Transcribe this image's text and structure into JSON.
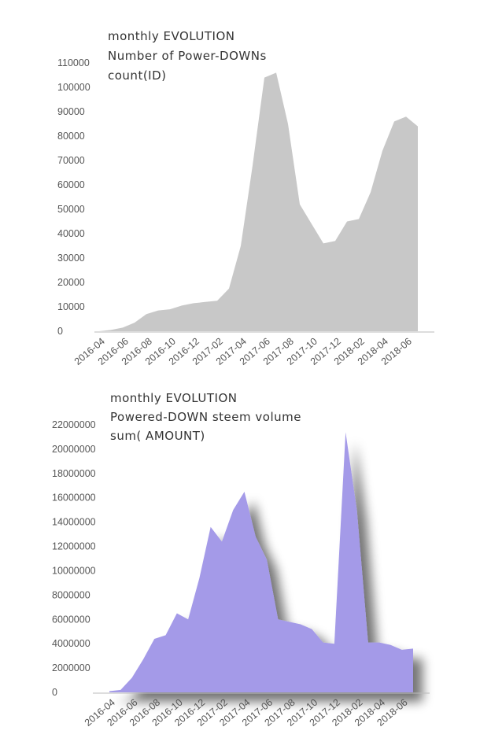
{
  "chart_data": [
    {
      "type": "area",
      "title": "monthly EVOLUTION",
      "subtitle": "Number of Power-DOWNs",
      "ylabel": "count(ID)",
      "color": "#c8c8c8",
      "ylim": [
        0,
        110000
      ],
      "yticks": [
        0,
        10000,
        20000,
        30000,
        40000,
        50000,
        60000,
        70000,
        80000,
        90000,
        100000,
        110000
      ],
      "xtick_labels": [
        "2016-04",
        "2016-06",
        "2016-08",
        "2016-10",
        "2016-12",
        "2017-02",
        "2017-04",
        "2017-06",
        "2017-08",
        "2017-10",
        "2017-12",
        "2018-02",
        "2018-04",
        "2018-06"
      ],
      "categories": [
        "2016-04",
        "2016-05",
        "2016-06",
        "2016-07",
        "2016-08",
        "2016-09",
        "2016-10",
        "2016-11",
        "2016-12",
        "2017-01",
        "2017-02",
        "2017-03",
        "2017-04",
        "2017-05",
        "2017-06",
        "2017-07",
        "2017-08",
        "2017-09",
        "2017-10",
        "2017-11",
        "2017-12",
        "2018-01",
        "2018-02",
        "2018-03",
        "2018-04",
        "2018-05",
        "2018-06",
        "2018-07"
      ],
      "values": [
        0,
        500,
        1500,
        3500,
        7000,
        8500,
        9000,
        10500,
        11500,
        12000,
        12500,
        17500,
        35000,
        68000,
        104000,
        106000,
        85000,
        52000,
        44000,
        36000,
        37000,
        45000,
        46000,
        57000,
        74000,
        86000,
        88000,
        84000
      ]
    },
    {
      "type": "area",
      "title": "monthly EVOLUTION",
      "subtitle": "Powered-DOWN steem volume",
      "ylabel": "sum( AMOUNT)",
      "color": "#a49ae8",
      "ylim": [
        0,
        22000000
      ],
      "yticks": [
        0,
        2000000,
        4000000,
        6000000,
        8000000,
        10000000,
        12000000,
        14000000,
        16000000,
        18000000,
        20000000,
        22000000
      ],
      "xtick_labels": [
        "2016-04",
        "2016-06",
        "2016-08",
        "2016-10",
        "2016-12",
        "2017-02",
        "2017-04",
        "2017-06",
        "2017-08",
        "2017-10",
        "2017-12",
        "2018-02",
        "2018-04",
        "2018-06"
      ],
      "categories": [
        "2016-04",
        "2016-05",
        "2016-06",
        "2016-07",
        "2016-08",
        "2016-09",
        "2016-10",
        "2016-11",
        "2016-12",
        "2017-01",
        "2017-02",
        "2017-03",
        "2017-04",
        "2017-05",
        "2017-06",
        "2017-07",
        "2017-08",
        "2017-09",
        "2017-10",
        "2017-11",
        "2017-12",
        "2018-01",
        "2018-02",
        "2018-03",
        "2018-04",
        "2018-05",
        "2018-06",
        "2018-07"
      ],
      "values": [
        100000,
        200000,
        1200000,
        2700000,
        4400000,
        4700000,
        6500000,
        6000000,
        9400000,
        13600000,
        12400000,
        15000000,
        16500000,
        12800000,
        10900000,
        6000000,
        5800000,
        5600000,
        5200000,
        4100000,
        4000000,
        21400000,
        15000000,
        4100000,
        4100000,
        3900000,
        3500000,
        3600000
      ]
    }
  ]
}
